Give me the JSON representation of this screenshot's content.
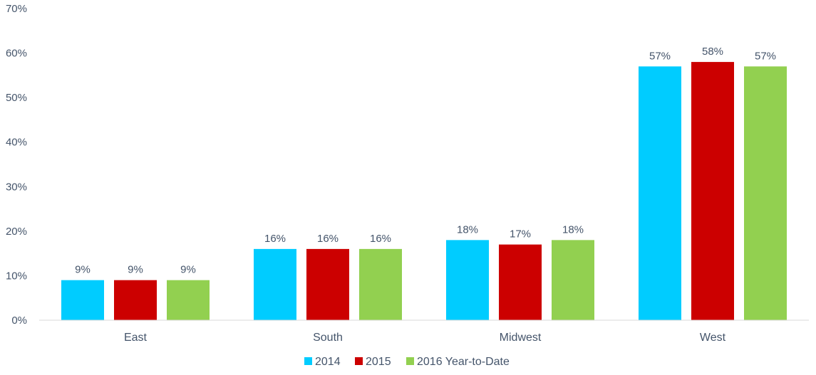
{
  "chart_data": {
    "type": "bar",
    "categories": [
      "East",
      "South",
      "Midwest",
      "West"
    ],
    "series": [
      {
        "name": "2014",
        "values": [
          9,
          16,
          18,
          57
        ],
        "color": "#00ccff"
      },
      {
        "name": "2015",
        "values": [
          9,
          16,
          17,
          58
        ],
        "color": "#cc0000"
      },
      {
        "name": "2016 Year-to-Date",
        "values": [
          9,
          16,
          18,
          57
        ],
        "color": "#92d050"
      }
    ],
    "data_labels": [
      [
        "9%",
        "9%",
        "9%"
      ],
      [
        "16%",
        "16%",
        "16%"
      ],
      [
        "18%",
        "17%",
        "18%"
      ],
      [
        "57%",
        "58%",
        "57%"
      ]
    ],
    "yticks": [
      0,
      10,
      20,
      30,
      40,
      50,
      60,
      70
    ],
    "ytick_labels": [
      "0%",
      "10%",
      "20%",
      "30%",
      "40%",
      "50%",
      "60%",
      "70%"
    ],
    "ylim": [
      0,
      70
    ],
    "title": "",
    "xlabel": "",
    "ylabel": "",
    "grid": false,
    "legend_position": "bottom"
  }
}
